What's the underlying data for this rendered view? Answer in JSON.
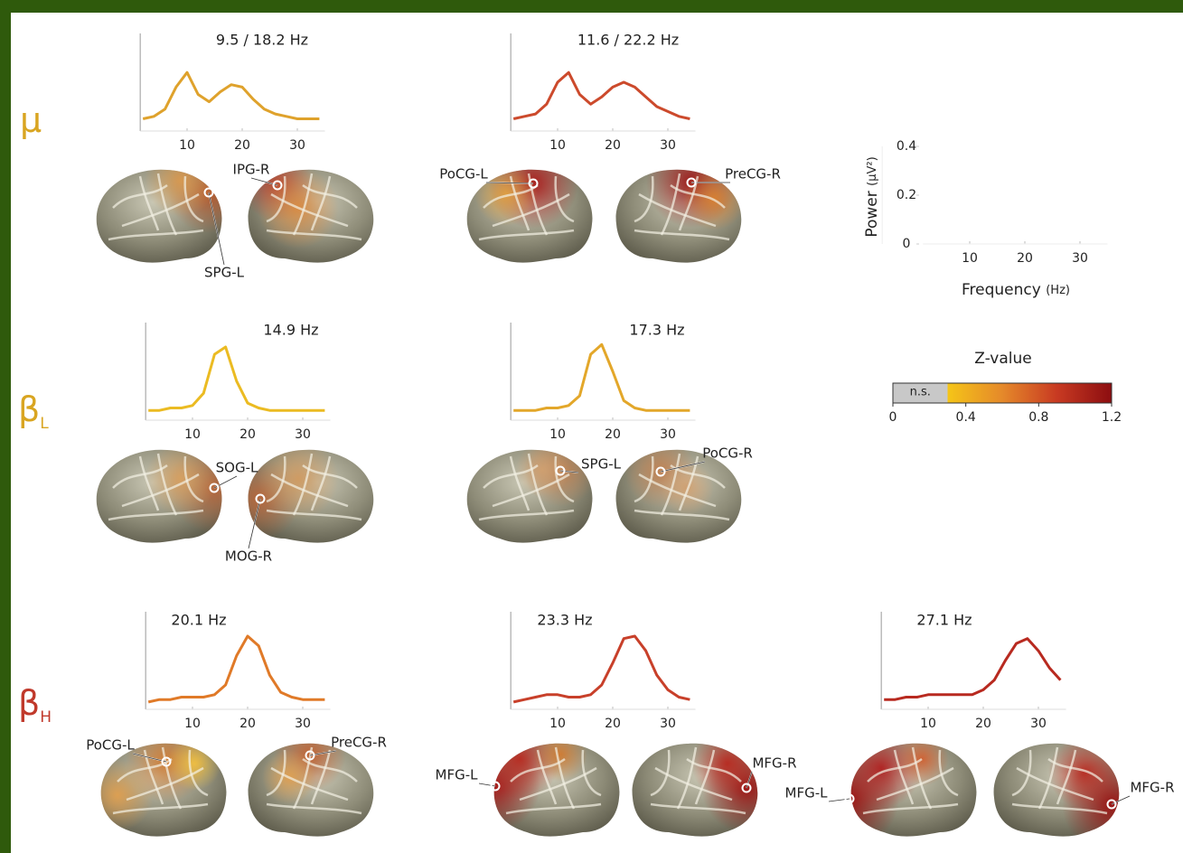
{
  "row_labels": [
    {
      "symbol": "μ",
      "color": "#d9a521"
    },
    {
      "symbol": "β",
      "subscript": "L",
      "color": "#d9a521"
    },
    {
      "symbol": "β",
      "subscript": "H",
      "color": "#c0392b"
    }
  ],
  "chart_data": [
    {
      "type": "line",
      "title": "9.5 / 18.2 Hz",
      "color": "#dfa22c",
      "x": [
        2,
        4,
        6,
        8,
        10,
        12,
        14,
        16,
        18,
        20,
        22,
        24,
        26,
        28,
        30,
        32,
        34
      ],
      "values": [
        0.05,
        0.06,
        0.09,
        0.18,
        0.24,
        0.15,
        0.12,
        0.16,
        0.19,
        0.18,
        0.13,
        0.09,
        0.07,
        0.06,
        0.05,
        0.05,
        0.05
      ],
      "xlim": [
        1.5,
        35
      ],
      "ylim": [
        0,
        0.4
      ],
      "xticks": [
        10,
        20,
        30
      ]
    },
    {
      "type": "line",
      "title": "11.6 / 22.2 Hz",
      "color": "#cc4a2c",
      "x": [
        2,
        4,
        6,
        8,
        10,
        12,
        14,
        16,
        18,
        20,
        22,
        24,
        26,
        28,
        30,
        32,
        34
      ],
      "values": [
        0.05,
        0.06,
        0.07,
        0.11,
        0.2,
        0.24,
        0.15,
        0.11,
        0.14,
        0.18,
        0.2,
        0.18,
        0.14,
        0.1,
        0.08,
        0.06,
        0.05
      ],
      "xlim": [
        1.5,
        35
      ],
      "ylim": [
        0,
        0.4
      ],
      "xticks": [
        10,
        20,
        30
      ]
    },
    {
      "type": "line",
      "title": "14.9 Hz",
      "color": "#ebbb22",
      "x": [
        2,
        4,
        6,
        8,
        10,
        12,
        14,
        16,
        18,
        20,
        22,
        24,
        26,
        28,
        30,
        32,
        34
      ],
      "values": [
        0.04,
        0.04,
        0.05,
        0.05,
        0.06,
        0.11,
        0.27,
        0.3,
        0.16,
        0.07,
        0.05,
        0.04,
        0.04,
        0.04,
        0.04,
        0.04,
        0.04
      ],
      "xlim": [
        1.5,
        35
      ],
      "ylim": [
        0,
        0.4
      ],
      "xticks": [
        10,
        20,
        30
      ]
    },
    {
      "type": "line",
      "title": "17.3 Hz",
      "color": "#e3a72a",
      "x": [
        2,
        4,
        6,
        8,
        10,
        12,
        14,
        16,
        18,
        20,
        22,
        24,
        26,
        28,
        30,
        32,
        34
      ],
      "values": [
        0.04,
        0.04,
        0.04,
        0.05,
        0.05,
        0.06,
        0.1,
        0.27,
        0.31,
        0.2,
        0.08,
        0.05,
        0.04,
        0.04,
        0.04,
        0.04,
        0.04
      ],
      "xlim": [
        1.5,
        35
      ],
      "ylim": [
        0,
        0.4
      ],
      "xticks": [
        10,
        20,
        30
      ]
    },
    {
      "type": "line",
      "title": "20.1 Hz",
      "color": "#e07a28",
      "x": [
        2,
        4,
        6,
        8,
        10,
        12,
        14,
        16,
        18,
        20,
        22,
        24,
        26,
        28,
        30,
        32,
        34
      ],
      "values": [
        0.03,
        0.04,
        0.04,
        0.05,
        0.05,
        0.05,
        0.06,
        0.1,
        0.22,
        0.3,
        0.26,
        0.14,
        0.07,
        0.05,
        0.04,
        0.04,
        0.04
      ],
      "xlim": [
        1.5,
        35
      ],
      "ylim": [
        0,
        0.4
      ],
      "xticks": [
        10,
        20,
        30
      ]
    },
    {
      "type": "line",
      "title": "23.3 Hz",
      "color": "#c8402a",
      "x": [
        2,
        4,
        6,
        8,
        10,
        12,
        14,
        16,
        18,
        20,
        22,
        24,
        26,
        28,
        30,
        32,
        34
      ],
      "values": [
        0.03,
        0.04,
        0.05,
        0.06,
        0.06,
        0.05,
        0.05,
        0.06,
        0.1,
        0.19,
        0.29,
        0.3,
        0.24,
        0.14,
        0.08,
        0.05,
        0.04
      ],
      "xlim": [
        1.5,
        35
      ],
      "ylim": [
        0,
        0.4
      ],
      "xticks": [
        10,
        20,
        30
      ]
    },
    {
      "type": "line",
      "title": "27.1 Hz",
      "color": "#b82a20",
      "x": [
        2,
        4,
        6,
        8,
        10,
        12,
        14,
        16,
        18,
        20,
        22,
        24,
        26,
        28,
        30,
        32,
        34
      ],
      "values": [
        0.04,
        0.04,
        0.05,
        0.05,
        0.06,
        0.06,
        0.06,
        0.06,
        0.06,
        0.08,
        0.12,
        0.2,
        0.27,
        0.29,
        0.24,
        0.17,
        0.12
      ],
      "xlim": [
        1.5,
        35
      ],
      "ylim": [
        0,
        0.4
      ],
      "xticks": [
        10,
        20,
        30
      ]
    },
    {
      "type": "axes",
      "xlabel": "Frequency",
      "xlabel_unit": "(Hz)",
      "ylabel": "Power",
      "ylabel_unit": "(µV²)",
      "xlim": [
        1.5,
        35
      ],
      "ylim": [
        0,
        0.4
      ],
      "xticks": [
        10,
        20,
        30
      ],
      "yticks": [
        0,
        0.2,
        0.4
      ]
    }
  ],
  "brain_labels": [
    "IPG-R",
    "SPG-L",
    "PoCG-L",
    "PreCG-R",
    "SOG-L",
    "MOG-R",
    "SPG-L",
    "PoCG-R",
    "PoCG-L",
    "PreCG-R",
    "MFG-L",
    "MFG-R",
    "MFG-L",
    "MFG-R"
  ],
  "colorbar": {
    "title": "Z-value",
    "ns_label": "n.s.",
    "ns_max": 0.3,
    "lim": [
      0,
      1.2
    ],
    "ticks": [
      0,
      0.4,
      0.8,
      1.2
    ],
    "ns_color": "#c8c8c8",
    "colors": [
      "#f5c518",
      "#e5892a",
      "#c83a22",
      "#8c0d10"
    ]
  }
}
